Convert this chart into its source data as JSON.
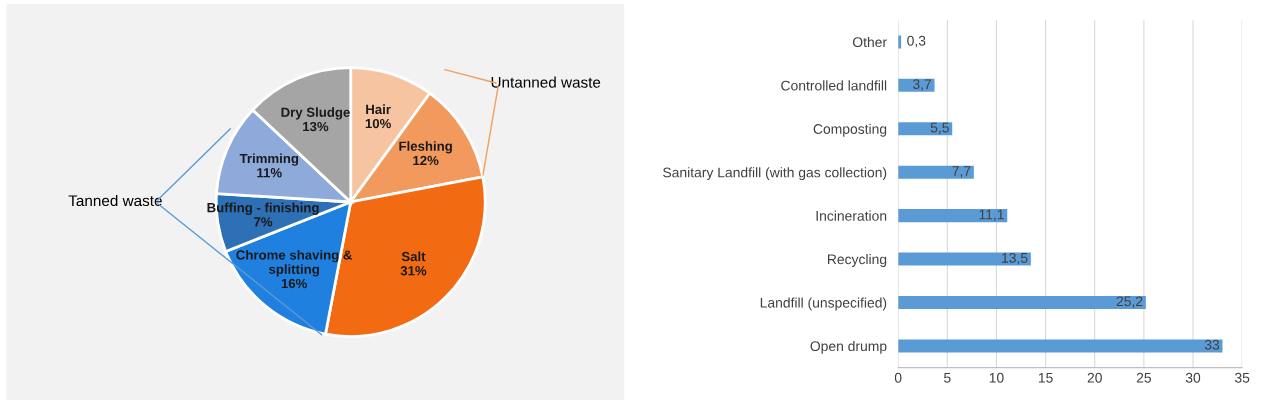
{
  "chart_data": [
    {
      "type": "pie",
      "categories": [
        "Hair",
        "Fleshing",
        "Salt",
        "Chrome shaving &\nsplitting",
        "Buffing - finishing",
        "Trimming",
        "Dry Sludge"
      ],
      "values": [
        10,
        12,
        31,
        16,
        7,
        11,
        13
      ],
      "colors": [
        "#f6c4a0",
        "#f29a5e",
        "#f26b12",
        "#1f80e0",
        "#2d70b5",
        "#8eaadb",
        "#a5a5a5"
      ],
      "value_labels": [
        "10%",
        "12%",
        "31%",
        "16%",
        "7%",
        "11%",
        "13%"
      ],
      "annotations": [
        "Untanned waste",
        "Tanned waste"
      ]
    },
    {
      "type": "bar",
      "orientation": "horizontal",
      "categories": [
        "Other",
        "Controlled landfill",
        "Composting",
        "Sanitary Landfill (with gas collection)",
        "Incineration",
        "Recycling",
        "Landfill (unspecified)",
        "Open drump"
      ],
      "values": [
        0.3,
        3.7,
        5.5,
        7.7,
        11.1,
        13.5,
        25.2,
        33
      ],
      "value_labels": [
        "0,3",
        "3,7",
        "5,5",
        "7,7",
        "11,1",
        "13,5",
        "25,2",
        "33"
      ],
      "color": "#5b9bd5",
      "xlim": [
        0,
        35
      ],
      "xticks": [
        0,
        5,
        10,
        15,
        20,
        25,
        30,
        35
      ],
      "grid": "x"
    }
  ]
}
